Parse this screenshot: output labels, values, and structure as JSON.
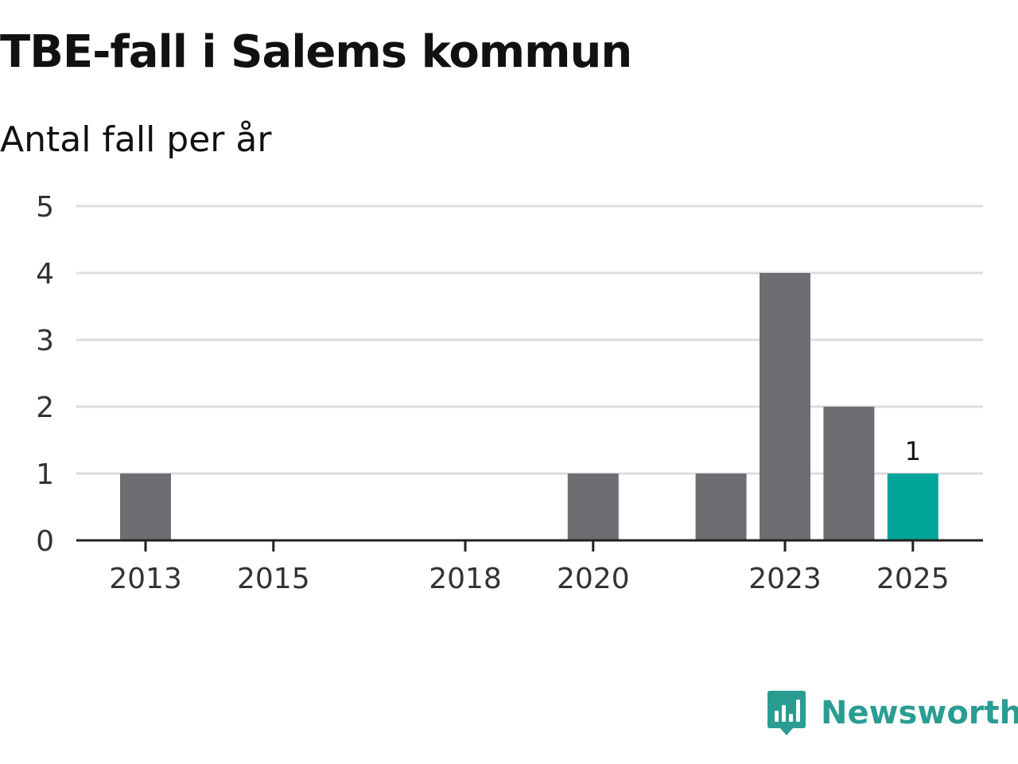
{
  "chart_data": {
    "type": "bar",
    "title": "TBE-fall i Salems kommun",
    "subtitle": "Antal fall per år",
    "xlabel": "",
    "ylabel": "",
    "ylim": [
      0,
      5
    ],
    "yticks": [
      0,
      1,
      2,
      3,
      4,
      5
    ],
    "grid": true,
    "categories": [
      "2013",
      "2014",
      "2015",
      "2016",
      "2017",
      "2018",
      "2019",
      "2020",
      "2021",
      "2022",
      "2023",
      "2024",
      "2025"
    ],
    "values": [
      1,
      0,
      0,
      0,
      0,
      0,
      0,
      1,
      0,
      1,
      4,
      2,
      1
    ],
    "xtick_labels": [
      "2013",
      "2015",
      "2018",
      "2020",
      "2023",
      "2025"
    ],
    "highlight": {
      "category": "2025",
      "value_label": "1"
    },
    "colors": {
      "bar": "#6e6d72",
      "highlight": "#00a499",
      "grid": "#dddddd",
      "axis": "#222222"
    }
  },
  "brand": {
    "name": "Newsworthy",
    "icon": "newsworthy-logo-icon",
    "color": "#2a9d93"
  }
}
